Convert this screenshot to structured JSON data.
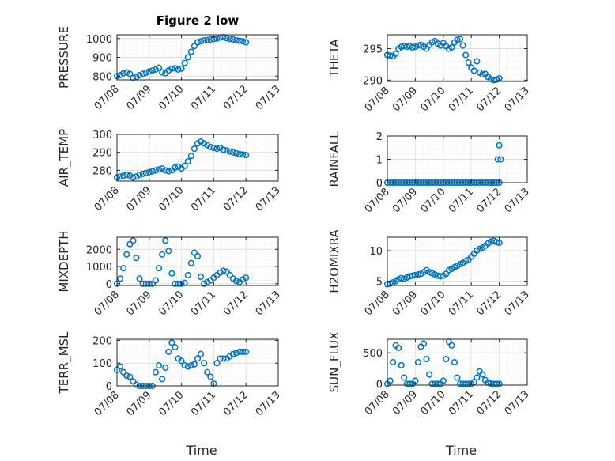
{
  "figure": {
    "title": "Figure 2 low",
    "xlabel": "Time",
    "marker_color": "#0072BD",
    "x_ticks": [
      "07/08",
      "07/09",
      "07/10",
      "07/11",
      "07/12",
      "07/13"
    ]
  },
  "chart_data": [
    {
      "type": "scatter",
      "title": "Figure 2 low",
      "ylabel": "PRESSURE",
      "ylim": [
        780,
        1020
      ],
      "yticks": [
        800,
        900,
        1000
      ],
      "grid": true,
      "x": [
        0.0,
        0.1,
        0.2,
        0.3,
        0.4,
        0.5,
        0.6,
        0.7,
        0.8,
        0.9,
        1.0,
        1.1,
        1.2,
        1.3,
        1.4,
        1.5,
        1.6,
        1.7,
        1.8,
        1.9,
        2.0,
        2.1,
        2.2,
        2.3,
        2.4,
        2.5,
        2.6,
        2.7,
        2.8,
        2.9,
        3.0,
        3.1,
        3.2,
        3.3,
        3.4,
        3.5,
        3.6,
        3.7,
        3.8,
        3.9,
        4.0
      ],
      "y": [
        800,
        805,
        815,
        820,
        812,
        790,
        795,
        805,
        812,
        818,
        825,
        830,
        835,
        845,
        820,
        815,
        830,
        840,
        842,
        835,
        840,
        870,
        900,
        930,
        960,
        980,
        985,
        990,
        992,
        995,
        998,
        1000,
        1005,
        1008,
        1002,
        998,
        995,
        990,
        988,
        985,
        980
      ]
    },
    {
      "type": "scatter",
      "ylabel": "THETA",
      "ylim": [
        289.8,
        297.2
      ],
      "yticks": [
        290,
        295
      ],
      "grid": true,
      "x": [
        0.0,
        0.1,
        0.2,
        0.3,
        0.4,
        0.5,
        0.6,
        0.7,
        0.8,
        0.9,
        1.0,
        1.1,
        1.2,
        1.3,
        1.4,
        1.5,
        1.6,
        1.7,
        1.8,
        1.9,
        2.0,
        2.1,
        2.2,
        2.3,
        2.4,
        2.5,
        2.6,
        2.7,
        2.8,
        2.9,
        3.0,
        3.1,
        3.2,
        3.3,
        3.4,
        3.5,
        3.6,
        3.7,
        3.8,
        3.9,
        4.0
      ],
      "y": [
        294.0,
        293.9,
        293.8,
        294.2,
        295.0,
        295.3,
        295.4,
        295.3,
        295.4,
        295.2,
        295.3,
        295.5,
        295.6,
        295.3,
        295.0,
        295.6,
        296.0,
        296.2,
        295.8,
        295.5,
        295.9,
        295.4,
        295.0,
        295.2,
        296.0,
        296.4,
        296.5,
        295.5,
        294.0,
        292.8,
        292.0,
        291.5,
        293.0,
        291.2,
        290.9,
        291.0,
        290.5,
        290.2,
        290.0,
        290.1,
        290.3
      ]
    },
    {
      "type": "scatter",
      "ylabel": "AIR_TEMP",
      "ylim": [
        274,
        300
      ],
      "yticks": [
        280,
        290,
        300
      ],
      "grid": true,
      "x": [
        0.0,
        0.1,
        0.2,
        0.3,
        0.4,
        0.5,
        0.6,
        0.7,
        0.8,
        0.9,
        1.0,
        1.1,
        1.2,
        1.3,
        1.4,
        1.5,
        1.6,
        1.7,
        1.8,
        1.9,
        2.0,
        2.1,
        2.2,
        2.3,
        2.4,
        2.5,
        2.6,
        2.7,
        2.8,
        2.9,
        3.0,
        3.1,
        3.2,
        3.3,
        3.4,
        3.5,
        3.6,
        3.7,
        3.8,
        3.9,
        4.0
      ],
      "y": [
        276.0,
        276.5,
        277.0,
        277.5,
        277.0,
        276.0,
        276.5,
        277.5,
        278.0,
        278.5,
        279.0,
        279.5,
        280.0,
        280.5,
        281.0,
        280.0,
        279.5,
        280.0,
        281.5,
        282.0,
        281.0,
        282.5,
        285.0,
        288.0,
        292.0,
        295.0,
        296.0,
        295.0,
        294.0,
        293.0,
        292.5,
        292.0,
        292.5,
        291.5,
        291.0,
        290.5,
        290.0,
        289.5,
        289.0,
        288.8,
        288.5
      ]
    },
    {
      "type": "scatter",
      "ylabel": "RAINFALL",
      "ylim": [
        0,
        2
      ],
      "yticks": [
        0,
        1,
        2
      ],
      "grid": true,
      "x": [
        0.0,
        0.1,
        0.2,
        0.3,
        0.4,
        0.5,
        0.6,
        0.7,
        0.8,
        0.9,
        1.0,
        1.1,
        1.2,
        1.3,
        1.4,
        1.5,
        1.6,
        1.7,
        1.8,
        1.9,
        2.0,
        2.1,
        2.2,
        2.3,
        2.4,
        2.5,
        2.6,
        2.7,
        2.8,
        2.9,
        3.0,
        3.1,
        3.2,
        3.3,
        3.4,
        3.5,
        3.6,
        3.7,
        3.8,
        3.9,
        4.0,
        3.95,
        4.05,
        4.0
      ],
      "y": [
        0,
        0,
        0,
        0,
        0,
        0,
        0,
        0,
        0,
        0,
        0,
        0,
        0,
        0,
        0,
        0,
        0,
        0,
        0,
        0,
        0,
        0,
        0,
        0,
        0,
        0,
        0,
        0,
        0,
        0,
        0,
        0,
        0,
        0,
        0,
        0,
        0,
        0,
        0,
        0,
        0,
        1.0,
        1.0,
        1.6
      ]
    },
    {
      "type": "scatter",
      "ylabel": "MIXDEPTH",
      "ylim": [
        -100,
        2700
      ],
      "yticks": [
        0,
        1000,
        2000
      ],
      "grid": true,
      "x": [
        0.0,
        0.1,
        0.2,
        0.3,
        0.4,
        0.5,
        0.6,
        0.7,
        0.8,
        0.9,
        1.0,
        1.1,
        1.2,
        1.3,
        1.4,
        1.5,
        1.6,
        1.7,
        1.8,
        1.9,
        2.0,
        2.1,
        2.2,
        2.3,
        2.4,
        2.5,
        2.6,
        2.7,
        2.8,
        2.9,
        3.0,
        3.1,
        3.2,
        3.3,
        3.4,
        3.5,
        3.6,
        3.7,
        3.8,
        3.9,
        4.0
      ],
      "y": [
        0,
        300,
        900,
        1700,
        2300,
        2500,
        1500,
        300,
        0,
        0,
        0,
        0,
        200,
        900,
        1700,
        2500,
        1900,
        600,
        0,
        0,
        0,
        50,
        500,
        1200,
        1800,
        1600,
        400,
        0,
        100,
        200,
        350,
        500,
        650,
        750,
        700,
        500,
        300,
        150,
        100,
        250,
        350
      ]
    },
    {
      "type": "scatter",
      "ylabel": "H2OMIXRA",
      "ylim": [
        4.3,
        12.2
      ],
      "yticks": [
        5,
        10
      ],
      "grid": true,
      "x": [
        0.0,
        0.1,
        0.2,
        0.3,
        0.4,
        0.5,
        0.6,
        0.7,
        0.8,
        0.9,
        1.0,
        1.1,
        1.2,
        1.3,
        1.4,
        1.5,
        1.6,
        1.7,
        1.8,
        1.9,
        2.0,
        2.1,
        2.2,
        2.3,
        2.4,
        2.5,
        2.6,
        2.7,
        2.8,
        2.9,
        3.0,
        3.1,
        3.2,
        3.3,
        3.4,
        3.5,
        3.6,
        3.7,
        3.8,
        3.9,
        4.0
      ],
      "y": [
        4.5,
        4.6,
        4.8,
        5.0,
        5.3,
        5.5,
        5.4,
        5.6,
        5.8,
        5.9,
        6.0,
        6.1,
        6.2,
        6.5,
        6.8,
        6.5,
        6.3,
        6.1,
        5.9,
        5.8,
        5.9,
        6.2,
        6.8,
        7.0,
        7.3,
        7.5,
        7.8,
        8.0,
        8.3,
        8.5,
        9.0,
        9.5,
        10.0,
        10.3,
        10.5,
        10.8,
        11.2,
        11.5,
        11.6,
        11.4,
        11.3
      ]
    },
    {
      "type": "scatter",
      "ylabel": "TERR_MSL",
      "ylim": [
        0,
        205
      ],
      "yticks": [
        0,
        100,
        200
      ],
      "grid": true,
      "x": [
        0.0,
        0.1,
        0.2,
        0.3,
        0.4,
        0.5,
        0.6,
        0.7,
        0.8,
        0.9,
        1.0,
        1.1,
        1.2,
        1.3,
        1.4,
        1.5,
        1.6,
        1.7,
        1.8,
        1.9,
        2.0,
        2.1,
        2.2,
        2.3,
        2.4,
        2.5,
        2.6,
        2.7,
        2.8,
        2.9,
        3.0,
        3.1,
        3.2,
        3.3,
        3.4,
        3.5,
        3.6,
        3.7,
        3.8,
        3.9,
        4.0
      ],
      "y": [
        70,
        85,
        60,
        45,
        40,
        20,
        5,
        0,
        0,
        0,
        0,
        0,
        60,
        90,
        30,
        80,
        150,
        190,
        170,
        120,
        110,
        90,
        85,
        90,
        95,
        120,
        140,
        100,
        60,
        40,
        10,
        100,
        120,
        120,
        120,
        130,
        140,
        145,
        150,
        150,
        150
      ]
    },
    {
      "type": "scatter",
      "ylabel": "SUN_FLUX",
      "ylim": [
        -20,
        720
      ],
      "yticks": [
        0,
        500
      ],
      "grid": true,
      "x": [
        0.0,
        0.1,
        0.2,
        0.3,
        0.4,
        0.5,
        0.6,
        0.7,
        0.8,
        0.9,
        1.0,
        1.1,
        1.2,
        1.3,
        1.4,
        1.5,
        1.6,
        1.7,
        1.8,
        1.9,
        2.0,
        2.1,
        2.2,
        2.3,
        2.4,
        2.5,
        2.6,
        2.7,
        2.8,
        2.9,
        3.0,
        3.1,
        3.2,
        3.3,
        3.4,
        3.5,
        3.6,
        3.7,
        3.8,
        3.9,
        4.0
      ],
      "y": [
        0,
        50,
        350,
        620,
        580,
        300,
        100,
        0,
        0,
        0,
        50,
        350,
        600,
        650,
        400,
        150,
        0,
        0,
        0,
        0,
        50,
        400,
        680,
        620,
        350,
        100,
        0,
        0,
        0,
        0,
        0,
        30,
        100,
        200,
        150,
        60,
        20,
        5,
        0,
        0,
        0
      ]
    }
  ]
}
